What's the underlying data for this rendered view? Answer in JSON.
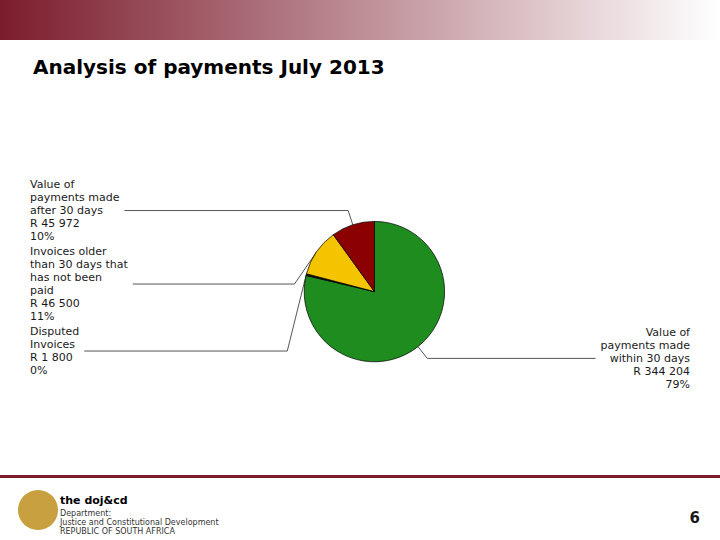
{
  "chart_data": {
    "type": "pie",
    "title": "Analysis of payments July 2013",
    "categories": [
      "Value of\npayments made\nwithin 30 days\nR 344 204\n79%",
      "Disputed\nInvoices\nR 1 800\n0%",
      "Invoices older\nthan 30 days that\nhas not been\npaid\nR 46 500\n11%",
      "Value of\npayments made\nafter 30 days\nR 45 972\n10%"
    ],
    "values": [
      79,
      0.4,
      11,
      10
    ],
    "colors": [
      "#1e8c1e",
      "#111100",
      "#f5c400",
      "#8b0000"
    ],
    "annotations": [
      "the doj&cd",
      "Department:",
      "Justice and Constitutional Development",
      "REPUBLIC OF SOUTH AFRICA",
      "6"
    ]
  }
}
